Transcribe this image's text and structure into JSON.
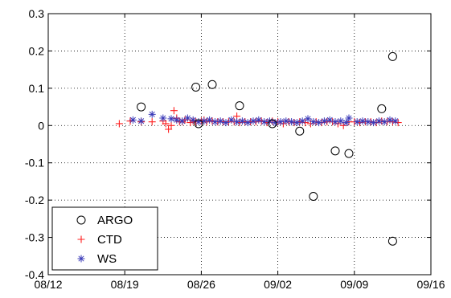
{
  "chart_data": {
    "type": "scatter",
    "title": "",
    "xlabel": "",
    "ylabel": "",
    "x_axis": {
      "kind": "date",
      "range": [
        "08/12",
        "09/16"
      ],
      "ticks": [
        "08/12",
        "08/19",
        "08/26",
        "09/02",
        "09/09",
        "09/16"
      ]
    },
    "y_axis": {
      "range": [
        -0.4,
        0.3
      ],
      "ticks": [
        "0.3",
        "0.2",
        "0.1",
        "0",
        "-0.1",
        "-0.2",
        "-0.3",
        "-0.4"
      ]
    },
    "grid": true,
    "legend_position": "bottom-left",
    "series": [
      {
        "name": "ARGO",
        "marker": "circle",
        "color": "#000000",
        "points": [
          [
            "08/20 12:00",
            0.05
          ],
          [
            "08/25 12:00",
            0.103
          ],
          [
            "08/25 18:00",
            0.005
          ],
          [
            "08/27",
            0.11
          ],
          [
            "08/29 12:00",
            0.053
          ],
          [
            "09/01 12:00",
            0.005
          ],
          [
            "09/04",
            -0.015
          ],
          [
            "09/05 06:00",
            -0.19
          ],
          [
            "09/07 06:00",
            -0.068
          ],
          [
            "09/08 12:00",
            -0.075
          ],
          [
            "09/11 12:00",
            0.045
          ],
          [
            "09/12 12:00",
            0.185
          ],
          [
            "09/12 12:00",
            -0.31
          ]
        ]
      },
      {
        "name": "CTD",
        "marker": "plus",
        "color": "#ff2020",
        "points": [
          [
            "08/18 12:00",
            0.005
          ],
          [
            "08/19 12:00",
            0.012
          ],
          [
            "08/20 12:00",
            0.01
          ],
          [
            "08/21 12:00",
            0.01
          ],
          [
            "08/22 12:00",
            0.012
          ],
          [
            "08/22 18:00",
            0.005
          ],
          [
            "08/23",
            -0.01
          ],
          [
            "08/23 06:00",
            0.0
          ],
          [
            "08/23 12:00",
            0.04
          ],
          [
            "08/23 18:00",
            0.02
          ],
          [
            "08/24",
            0.01
          ],
          [
            "08/24 06:00",
            0.01
          ],
          [
            "08/24 12:00",
            0.015
          ],
          [
            "08/25",
            0.008
          ],
          [
            "08/25 06:00",
            0.012
          ],
          [
            "08/25 12:00",
            0.01
          ],
          [
            "08/26",
            0.012
          ],
          [
            "08/26 06:00",
            0.015
          ],
          [
            "08/26 12:00",
            0.01
          ],
          [
            "08/27",
            0.012
          ],
          [
            "08/27 12:00",
            0.01
          ],
          [
            "08/28",
            0.01
          ],
          [
            "08/28 12:00",
            0.01
          ],
          [
            "08/29",
            0.01
          ],
          [
            "08/29 06:00",
            0.025
          ],
          [
            "08/29 12:00",
            0.008
          ],
          [
            "08/30",
            0.01
          ],
          [
            "08/30 12:00",
            0.01
          ],
          [
            "08/31",
            0.01
          ],
          [
            "08/31 12:00",
            0.012
          ],
          [
            "09/01",
            0.008
          ],
          [
            "09/01 12:00",
            0.012
          ],
          [
            "09/02",
            0.01
          ],
          [
            "09/02 12:00",
            0.005
          ],
          [
            "09/03",
            0.01
          ],
          [
            "09/03 12:00",
            0.008
          ],
          [
            "09/04",
            0.01
          ],
          [
            "09/04 12:00",
            0.008
          ],
          [
            "09/05",
            0.005
          ],
          [
            "09/05 12:00",
            0.01
          ],
          [
            "09/06",
            0.008
          ],
          [
            "09/06 12:00",
            0.01
          ],
          [
            "09/07",
            0.01
          ],
          [
            "09/07 12:00",
            0.005
          ],
          [
            "09/08",
            0.0
          ],
          [
            "09/08 12:00",
            0.01
          ],
          [
            "09/09",
            0.01
          ],
          [
            "09/09 12:00",
            0.008
          ],
          [
            "09/10",
            0.01
          ],
          [
            "09/10 12:00",
            0.01
          ],
          [
            "09/11",
            0.008
          ],
          [
            "09/11 12:00",
            0.012
          ],
          [
            "09/12",
            0.01
          ],
          [
            "09/12 12:00",
            0.01
          ],
          [
            "09/13",
            0.008
          ]
        ]
      },
      {
        "name": "WS",
        "marker": "asterisk",
        "color": "#3a3ab8",
        "points": [
          [
            "08/19 18:00",
            0.015
          ],
          [
            "08/20 12:00",
            0.012
          ],
          [
            "08/21 12:00",
            0.03
          ],
          [
            "08/22 12:00",
            0.02
          ],
          [
            "08/23 06:00",
            0.018
          ],
          [
            "08/23 18:00",
            0.015
          ],
          [
            "08/24 06:00",
            0.012
          ],
          [
            "08/24 18:00",
            0.02
          ],
          [
            "08/25 06:00",
            0.015
          ],
          [
            "08/25 18:00",
            0.01
          ],
          [
            "08/26 06:00",
            0.012
          ],
          [
            "08/26 18:00",
            0.015
          ],
          [
            "08/27 06:00",
            0.01
          ],
          [
            "08/27 18:00",
            0.012
          ],
          [
            "08/28 06:00",
            0.008
          ],
          [
            "08/28 18:00",
            0.015
          ],
          [
            "08/29 06:00",
            0.01
          ],
          [
            "08/29 18:00",
            0.012
          ],
          [
            "08/30 06:00",
            0.008
          ],
          [
            "08/30 18:00",
            0.012
          ],
          [
            "08/31 06:00",
            0.015
          ],
          [
            "08/31 18:00",
            0.01
          ],
          [
            "09/01 06:00",
            0.012
          ],
          [
            "09/01 18:00",
            0.008
          ],
          [
            "09/02 06:00",
            0.01
          ],
          [
            "09/02 18:00",
            0.012
          ],
          [
            "09/03 06:00",
            0.01
          ],
          [
            "09/03 18:00",
            0.008
          ],
          [
            "09/04 06:00",
            0.012
          ],
          [
            "09/04 18:00",
            0.018
          ],
          [
            "09/05 06:00",
            0.01
          ],
          [
            "09/05 18:00",
            0.008
          ],
          [
            "09/06 06:00",
            0.012
          ],
          [
            "09/06 18:00",
            0.015
          ],
          [
            "09/07 06:00",
            0.01
          ],
          [
            "09/07 18:00",
            0.012
          ],
          [
            "09/08 06:00",
            0.008
          ],
          [
            "09/08 12:00",
            0.02
          ],
          [
            "09/09 06:00",
            0.01
          ],
          [
            "09/09 18:00",
            0.012
          ],
          [
            "09/10 06:00",
            0.01
          ],
          [
            "09/10 18:00",
            0.008
          ],
          [
            "09/11 06:00",
            0.012
          ],
          [
            "09/11 18:00",
            0.01
          ],
          [
            "09/12 06:00",
            0.015
          ],
          [
            "09/12 18:00",
            0.012
          ]
        ]
      }
    ]
  }
}
